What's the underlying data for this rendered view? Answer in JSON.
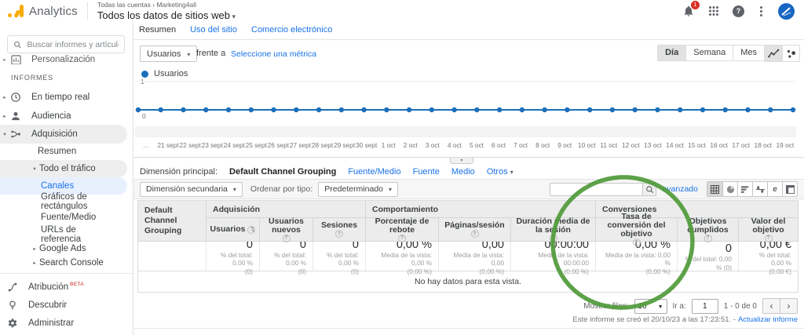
{
  "app": {
    "product": "Analytics",
    "breadcrumb_accounts": "Todas las cuentas",
    "breadcrumb_property": "Marketing4all",
    "view_title": "Todos los datos de sitios web",
    "notification_count": "1"
  },
  "sidebar": {
    "search_placeholder": "Buscar informes y artículos",
    "personalization": "Personalización",
    "section_reports": "INFORMES",
    "realtime": "En tiempo real",
    "audience": "Audiencia",
    "acquisition": "Adquisición",
    "overview": "Resumen",
    "all_traffic": "Todo el tráfico",
    "channels": "Canales",
    "treemaps": "Gráficos de rectángulos",
    "source_medium": "Fuente/Medio",
    "referrals": "URLs de referencia",
    "google_ads": "Google Ads",
    "search_console": "Search Console",
    "attribution": "Atribución",
    "attribution_badge": "BETA",
    "discover": "Descubrir",
    "admin": "Administrar"
  },
  "tabs": {
    "summary": "Resumen",
    "site_usage": "Uso del sitio",
    "ecommerce": "Comercio electrónico"
  },
  "controls": {
    "metric_selector": "Usuarios",
    "vs_label": "frente a",
    "select_metric": "Seleccione una métrica",
    "granularity": {
      "day": "Día",
      "week": "Semana",
      "month": "Mes",
      "selected": "Día"
    },
    "legend_label": "Usuarios"
  },
  "chart_data": {
    "type": "line",
    "title": "Usuarios",
    "x_overflow_left": "…",
    "x": [
      "21 sept",
      "22 sept",
      "23 sept",
      "24 sept",
      "25 sept",
      "26 sept",
      "27 sept",
      "28 sept",
      "29 sept",
      "30 sept",
      "1 oct",
      "2 oct",
      "3 oct",
      "4 oct",
      "5 oct",
      "6 oct",
      "7 oct",
      "8 oct",
      "9 oct",
      "10 oct",
      "11 oct",
      "12 oct",
      "13 oct",
      "14 oct",
      "15 oct",
      "16 oct",
      "17 oct",
      "18 oct",
      "19 oct"
    ],
    "series": [
      {
        "name": "Usuarios",
        "values": [
          0,
          0,
          0,
          0,
          0,
          0,
          0,
          0,
          0,
          0,
          0,
          0,
          0,
          0,
          0,
          0,
          0,
          0,
          0,
          0,
          0,
          0,
          0,
          0,
          0,
          0,
          0,
          0,
          0
        ]
      }
    ],
    "ylim": [
      0,
      1
    ],
    "yticks": [
      "1",
      "0"
    ],
    "line_color": "#1b6fba",
    "grid": true,
    "legend_position": "top-left"
  },
  "dimension_bar": {
    "label": "Dimensión principal:",
    "active": "Default Channel Grouping",
    "links": [
      "Fuente/Medio",
      "Fuente",
      "Medio",
      "Otros"
    ]
  },
  "table_toolbar": {
    "secondary_dimension": "Dimensión secundaria",
    "sort_label": "Ordenar por tipo:",
    "sort_value": "Predeterminado",
    "search_value": "",
    "advanced_link": "avanzado",
    "term_cloud_letter": "e"
  },
  "table": {
    "row_header": "Default Channel Grouping",
    "groups": [
      "Adquisición",
      "Comportamiento",
      "Conversiones"
    ],
    "columns": [
      "Usuarios",
      "Usuarios nuevos",
      "Sesiones",
      "Porcentaje de rebote",
      "Páginas/sesión",
      "Duración media de la sesión",
      "Tasa de conversión del objetivo",
      "Objetivos cumplidos",
      "Valor del objetivo"
    ],
    "totals": [
      {
        "value": "0",
        "sub": "% del total: 0,00 %\n(0)"
      },
      {
        "value": "0",
        "sub": "% del total: 0,00 %\n(0)"
      },
      {
        "value": "0",
        "sub": "% del total: 0,00 %\n(0)"
      },
      {
        "value": "0,00 %",
        "sub": "Media de la vista: 0,00 %\n(0,00 %)"
      },
      {
        "value": "0,00",
        "sub": "Media de la vista: 0,00\n(0,00 %)"
      },
      {
        "value": "00:00:00",
        "sub": "Media de la vista: 00:00:00\n(0,00 %)"
      },
      {
        "value": "0,00 %",
        "sub": "Media de la vista: 0,00 %\n(0,00 %)"
      },
      {
        "value": "0",
        "sub": "% del total: 0,00 % (0)"
      },
      {
        "value": "0,00 €",
        "sub": "% del total: 0,00 %\n(0,00 €)"
      }
    ],
    "empty_message": "No hay datos para esta vista."
  },
  "pagination": {
    "rows_label": "Mostrar filas:",
    "rows_value": "10",
    "goto_label": "Ir a:",
    "goto_value": "1",
    "range": "1 - 0 de 0"
  },
  "footer": {
    "created": "Este informe se creó el 20/10/23 a las 17:23:51. -",
    "refresh_link": "Actualizar informe"
  },
  "annotation": {
    "color": "#4f9a3a"
  }
}
